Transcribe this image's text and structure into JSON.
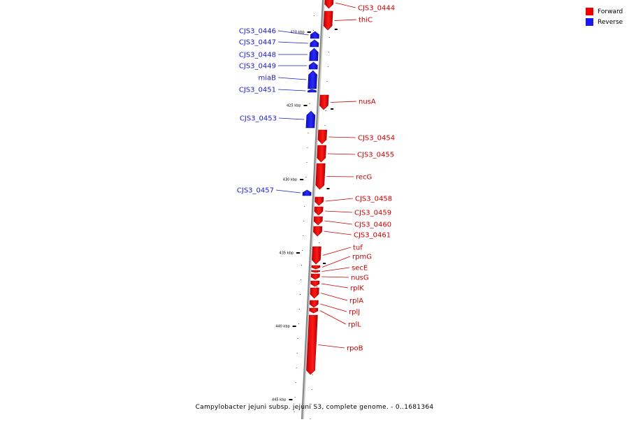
{
  "caption": "Campylobacter jejuni subsp. jejuni S3, complete genome. - 0..1681364",
  "legend": [
    {
      "label": "Forward",
      "color": "#ee0000"
    },
    {
      "label": "Reverse",
      "color": "#1a1aee"
    }
  ],
  "strand_colors": {
    "forward": "#ee0000",
    "reverse": "#1a1aee",
    "label_forward": "#cc0000",
    "label_reverse": "#1a1acc"
  },
  "ticks": [
    {
      "label": "420 kbp"
    },
    {
      "label": "425 kbp"
    },
    {
      "label": "430 kbp"
    },
    {
      "label": "435 kbp"
    },
    {
      "label": "440 kbp"
    },
    {
      "label": "445 kbp"
    }
  ],
  "genes": [
    {
      "name": "CJS3_0444",
      "strand": "forward"
    },
    {
      "name": "thiC",
      "strand": "forward"
    },
    {
      "name": "CJS3_0446",
      "strand": "reverse"
    },
    {
      "name": "CJS3_0447",
      "strand": "reverse"
    },
    {
      "name": "CJS3_0448",
      "strand": "reverse"
    },
    {
      "name": "CJS3_0449",
      "strand": "reverse"
    },
    {
      "name": "miaB",
      "strand": "reverse"
    },
    {
      "name": "CJS3_0451",
      "strand": "reverse"
    },
    {
      "name": "nusA",
      "strand": "forward"
    },
    {
      "name": "CJS3_0453",
      "strand": "reverse"
    },
    {
      "name": "CJS3_0454",
      "strand": "forward"
    },
    {
      "name": "CJS3_0455",
      "strand": "forward"
    },
    {
      "name": "recG",
      "strand": "forward"
    },
    {
      "name": "CJS3_0457",
      "strand": "reverse"
    },
    {
      "name": "CJS3_0458",
      "strand": "forward"
    },
    {
      "name": "CJS3_0459",
      "strand": "forward"
    },
    {
      "name": "CJS3_0460",
      "strand": "forward"
    },
    {
      "name": "CJS3_0461",
      "strand": "forward"
    },
    {
      "name": "tuf",
      "strand": "forward"
    },
    {
      "name": "rpmG",
      "strand": "forward"
    },
    {
      "name": "secE",
      "strand": "forward"
    },
    {
      "name": "nusG",
      "strand": "forward"
    },
    {
      "name": "rplK",
      "strand": "forward"
    },
    {
      "name": "rplA",
      "strand": "forward"
    },
    {
      "name": "rplJ",
      "strand": "forward"
    },
    {
      "name": "rplL",
      "strand": "forward"
    },
    {
      "name": "rpoB",
      "strand": "forward"
    }
  ]
}
